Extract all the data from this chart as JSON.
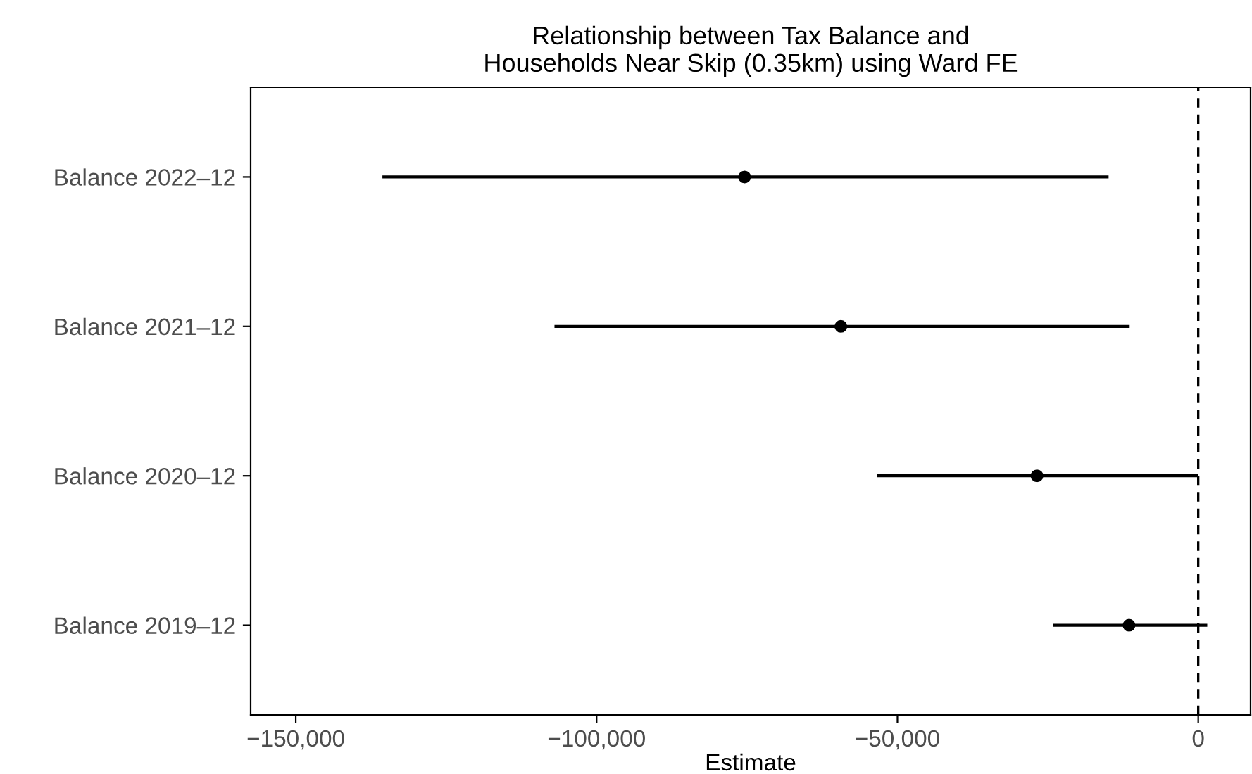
{
  "chart_data": {
    "type": "scatter",
    "orientation": "horizontal",
    "title": "Relationship between Tax Balance and\nHouseholds Near Skip (0.35km) using Ward FE",
    "xlabel": "Estimate",
    "categories": [
      "Balance 2022–12",
      "Balance 2021–12",
      "Balance 2020–12",
      "Balance 2019–12"
    ],
    "values": [
      -75400,
      -59400,
      -26800,
      -11500
    ],
    "errors": [
      [
        -135600,
        -14900
      ],
      [
        -107000,
        -11400
      ],
      [
        -53400,
        0
      ],
      [
        -24100,
        1500
      ]
    ],
    "color": "#000000",
    "marker": "circle",
    "xlim": [
      -157500,
      8700
    ],
    "xticks": [
      {
        "value": -150000,
        "label": "−150,000"
      },
      {
        "value": -100000,
        "label": "−100,000"
      },
      {
        "value": -50000,
        "label": "−50,000"
      },
      0
    ],
    "ref_lines": [
      {
        "axis": "x",
        "value": 0,
        "line_style": "dashed",
        "color": "#000000"
      }
    ],
    "grid": false
  }
}
